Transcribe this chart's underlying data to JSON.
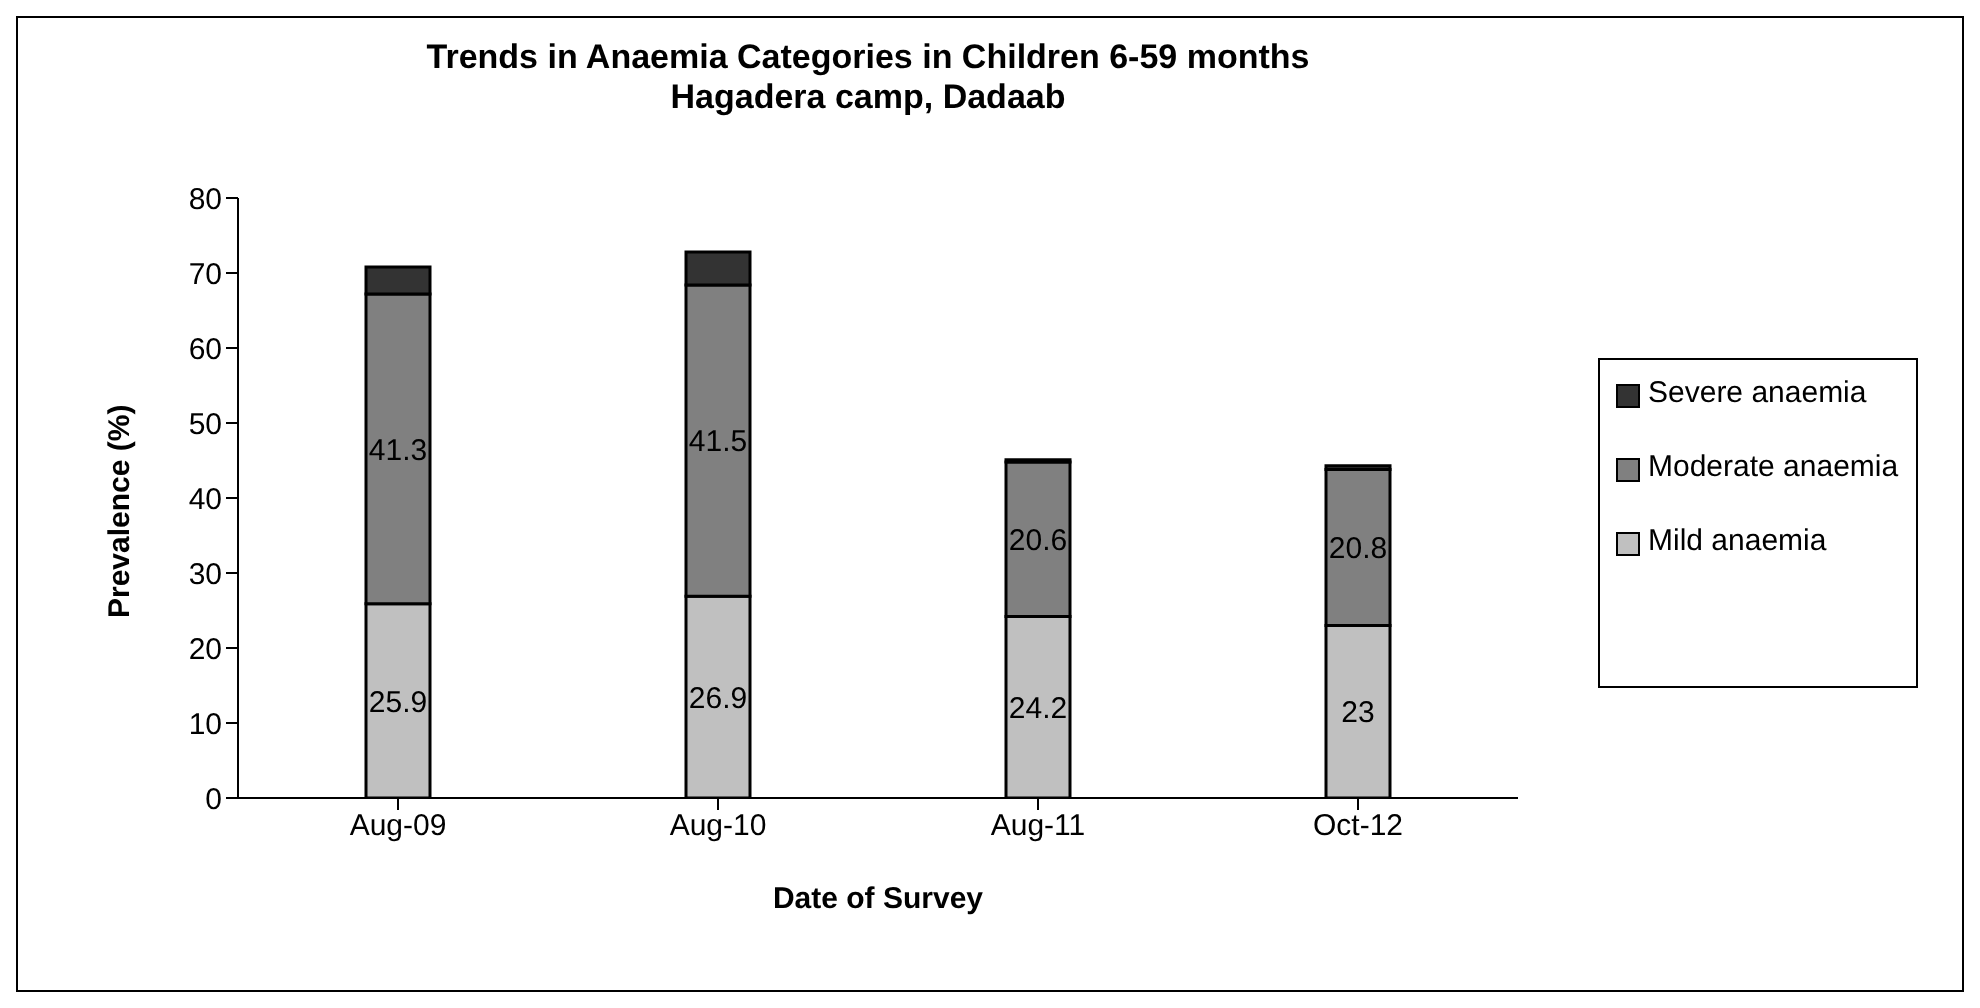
{
  "chart_data": {
    "type": "bar",
    "title": "Trends in Anaemia Categories in Children 6-59 months",
    "subtitle": "Hagadera camp, Dadaab",
    "xlabel": "Date of Survey",
    "ylabel": "Prevalence (%)",
    "categories": [
      "Aug-09",
      "Aug-10",
      "Aug-11",
      "Oct-12"
    ],
    "stacked": true,
    "ylim": [
      0,
      80
    ],
    "yticks": [
      0,
      10,
      20,
      30,
      40,
      50,
      60,
      70,
      80
    ],
    "grid": false,
    "legend": "right",
    "series": [
      {
        "name": "Mild anaemia",
        "color": "#c0c0c0",
        "values": [
          25.9,
          26.9,
          24.2,
          23
        ],
        "value_labels": [
          "25.9",
          "26.9",
          "24.2",
          "23"
        ]
      },
      {
        "name": "Moderate anaemia",
        "color": "#808080",
        "values": [
          41.3,
          41.5,
          20.6,
          20.8
        ],
        "value_labels": [
          "41.3",
          "41.5",
          "20.6",
          "20.8"
        ]
      },
      {
        "name": "Severe anaemia",
        "color": "#333333",
        "values": [
          3.6,
          4.4,
          0.3,
          0.5
        ]
      }
    ]
  }
}
